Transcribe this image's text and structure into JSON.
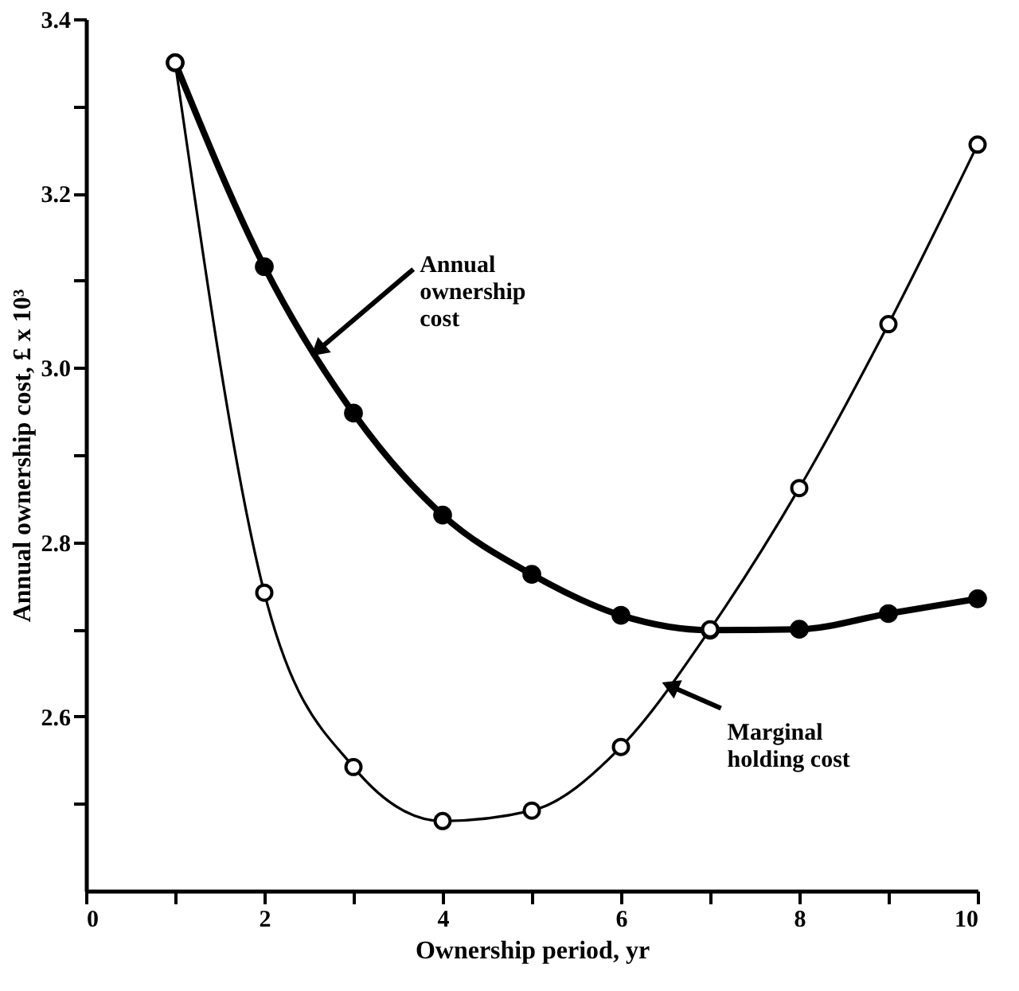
{
  "chart_data": {
    "type": "line",
    "xlabel": "Ownership period, yr",
    "ylabel": "Annual ownership cost, £ x 10³",
    "x": [
      1,
      2,
      3,
      4,
      5,
      6,
      7,
      8,
      9,
      10
    ],
    "series": [
      {
        "color": "#000000",
        "values": [
          3.35,
          3.116,
          2.948,
          2.831,
          2.763,
          2.716,
          2.699,
          2.7,
          2.718,
          2.735
        ]
      },
      {
        "color": "#000000",
        "values": [
          3.35,
          2.742,
          2.542,
          2.48,
          2.492,
          2.565,
          2.7,
          2.862,
          3.05,
          3.256
        ]
      }
    ],
    "xlim": [
      0,
      10
    ],
    "xticks": [
      0,
      {
        "value": 1,
        "label": null
      },
      2,
      {
        "value": 3,
        "label": null
      },
      4,
      {
        "value": 5,
        "label": null
      },
      6,
      {
        "value": 7,
        "label": null
      },
      8,
      {
        "value": 9,
        "label": null
      },
      10
    ],
    "ylim": [
      2.4,
      3.4
    ],
    "yticks": [
      {
        "value": 2.5,
        "label": null
      },
      2.6,
      {
        "value": 2.7,
        "label": null
      },
      2.8,
      {
        "value": 2.9,
        "label": null
      },
      {
        "value": 3.0,
        "label": "3.0"
      },
      {
        "value": 3.1,
        "label": null
      },
      3.2,
      {
        "value": 3.3,
        "label": null
      },
      3.4
    ],
    "annotations": [
      {
        "text": "Annual\nownership\ncost",
        "x": 2.6,
        "y": 3.02
      },
      {
        "text": "Marginal\nholding cost",
        "x": 6.55,
        "y": 2.635
      }
    ],
    "marker": "circle",
    "grid": false,
    "line_style": "solid"
  }
}
